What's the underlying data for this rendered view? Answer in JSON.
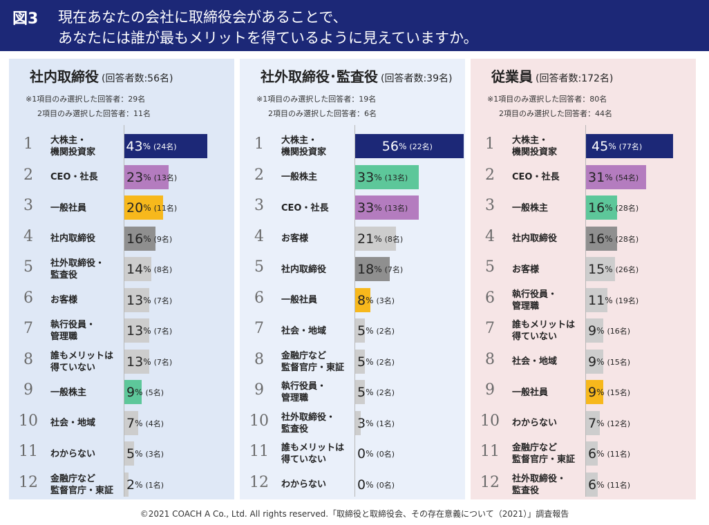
{
  "header": {
    "figure": "図3",
    "title_line1": "現在あなたの会社に取締役会があることで、",
    "title_line2": "あなたには誰が最もメリットを得ているように見えていますか。"
  },
  "colors": {
    "navy": "#1c2877",
    "purple": "#b47cbf",
    "gold": "#f7b81c",
    "darkgray": "#8f8f8f",
    "lightgray": "#cdcdcd",
    "green": "#5dc79a"
  },
  "chart_data": [
    {
      "type": "bar",
      "title": "社内取締役",
      "subtitle": "(回答者数:56名)",
      "note1": "※1項目のみ選択した回答者：29名",
      "note2": "2項目のみ選択した回答者：11名",
      "unit": "%",
      "xlim": [
        0,
        100
      ],
      "ranks": [
        "1",
        "2",
        "3",
        "4",
        "5",
        "6",
        "7",
        "8",
        "9",
        "10",
        "11",
        "12"
      ],
      "categories": [
        "大株主・\n機関投資家",
        "CEO・社長",
        "一般社員",
        "社内取締役",
        "社外取締役・\n監査役",
        "お客様",
        "執行役員・\n管理職",
        "誰もメリットは\n得ていない",
        "一般株主",
        "社会・地域",
        "わからない",
        "金融庁など\n監督官庁・東証"
      ],
      "values": [
        43,
        23,
        20,
        16,
        14,
        13,
        13,
        13,
        9,
        7,
        5,
        2
      ],
      "counts": [
        "(24名)",
        "(13名)",
        "(11名)",
        "(9名)",
        "(8名)",
        "(7名)",
        "(7名)",
        "(7名)",
        "(5名)",
        "(4名)",
        "(3名)",
        "(1名)"
      ],
      "colors": [
        "navy",
        "purple",
        "gold",
        "darkgray",
        "lightgray",
        "lightgray",
        "lightgray",
        "lightgray",
        "green",
        "lightgray",
        "lightgray",
        "lightgray"
      ]
    },
    {
      "type": "bar",
      "title": "社外取締役･監査役",
      "subtitle": "(回答者数:39名)",
      "note1": "※1項目のみ選択した回答者：19名",
      "note2": "2項目のみ選択した回答者：6名",
      "unit": "%",
      "xlim": [
        0,
        100
      ],
      "ranks": [
        "1",
        "2",
        "3",
        "4",
        "5",
        "6",
        "7",
        "8",
        "9",
        "10",
        "11",
        "12"
      ],
      "categories": [
        "大株主・\n機関投資家",
        "一般株主",
        "CEO・社長",
        "お客様",
        "社内取締役",
        "一般社員",
        "社会・地域",
        "金融庁など\n監督官庁・東証",
        "執行役員・\n管理職",
        "社外取締役・\n監査役",
        "誰もメリットは\n得ていない",
        "わからない"
      ],
      "values": [
        56,
        33,
        33,
        21,
        18,
        8,
        5,
        5,
        5,
        3,
        0,
        0
      ],
      "counts": [
        "(22名)",
        "(13名)",
        "(13名)",
        "(8名)",
        "(7名)",
        "(3名)",
        "(2名)",
        "(2名)",
        "(2名)",
        "(1名)",
        "(0名)",
        "(0名)"
      ],
      "colors": [
        "navy",
        "green",
        "purple",
        "lightgray",
        "darkgray",
        "gold",
        "lightgray",
        "lightgray",
        "lightgray",
        "lightgray",
        "lightgray",
        "lightgray"
      ]
    },
    {
      "type": "bar",
      "title": "従業員",
      "subtitle": "(回答者数:172名)",
      "note1": "※1項目のみ選択した回答者：80名",
      "note2": "2項目のみ選択した回答者：44名",
      "unit": "%",
      "xlim": [
        0,
        100
      ],
      "ranks": [
        "1",
        "2",
        "3",
        "4",
        "5",
        "6",
        "7",
        "8",
        "9",
        "10",
        "11",
        "12"
      ],
      "categories": [
        "大株主・\n機関投資家",
        "CEO・社長",
        "一般株主",
        "社内取締役",
        "お客様",
        "執行役員・\n管理職",
        "誰もメリットは\n得ていない",
        "社会・地域",
        "一般社員",
        "わからない",
        "金融庁など\n監督官庁・東証",
        "社外取締役・\n監査役"
      ],
      "values": [
        45,
        31,
        16,
        16,
        15,
        11,
        9,
        9,
        9,
        7,
        6,
        6
      ],
      "counts": [
        "(77名)",
        "(54名)",
        "(28名)",
        "(28名)",
        "(26名)",
        "(19名)",
        "(16名)",
        "(15名)",
        "(15名)",
        "(12名)",
        "(11名)",
        "(11名)"
      ],
      "colors": [
        "navy",
        "purple",
        "green",
        "darkgray",
        "lightgray",
        "lightgray",
        "lightgray",
        "lightgray",
        "gold",
        "lightgray",
        "lightgray",
        "lightgray"
      ]
    }
  ],
  "footer": "©2021 COACH A Co., Ltd. All rights reserved.「取締役と取締役会、その存在意義について（2021）」調査報告"
}
